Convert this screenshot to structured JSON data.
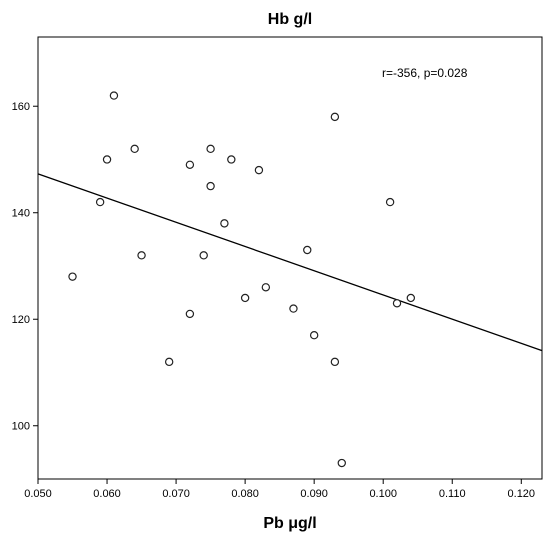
{
  "chart_data": {
    "type": "scatter",
    "title": "Hb g/l",
    "xlabel": "Pb μg/l",
    "ylabel": "",
    "xlim": [
      0.05,
      0.123
    ],
    "ylim": [
      90,
      173
    ],
    "x_ticks": [
      0.05,
      0.06,
      0.07,
      0.08,
      0.09,
      0.1,
      0.11,
      0.12
    ],
    "x_tick_labels": [
      "0.050",
      "0.060",
      "0.070",
      "0.080",
      "0.090",
      "0.100",
      "0.110",
      "0.120"
    ],
    "y_ticks": [
      100,
      120,
      140,
      160
    ],
    "y_tick_labels": [
      "100",
      "120",
      "140",
      "160"
    ],
    "annotation": "r=-356, p=0.028",
    "grid": false,
    "points": [
      {
        "x": 0.055,
        "y": 128
      },
      {
        "x": 0.059,
        "y": 142
      },
      {
        "x": 0.06,
        "y": 150
      },
      {
        "x": 0.061,
        "y": 162
      },
      {
        "x": 0.064,
        "y": 152
      },
      {
        "x": 0.065,
        "y": 132
      },
      {
        "x": 0.069,
        "y": 112
      },
      {
        "x": 0.072,
        "y": 149
      },
      {
        "x": 0.072,
        "y": 121
      },
      {
        "x": 0.074,
        "y": 132
      },
      {
        "x": 0.075,
        "y": 152
      },
      {
        "x": 0.075,
        "y": 145
      },
      {
        "x": 0.077,
        "y": 138
      },
      {
        "x": 0.078,
        "y": 150
      },
      {
        "x": 0.08,
        "y": 124
      },
      {
        "x": 0.082,
        "y": 148
      },
      {
        "x": 0.083,
        "y": 126
      },
      {
        "x": 0.087,
        "y": 122
      },
      {
        "x": 0.089,
        "y": 133
      },
      {
        "x": 0.09,
        "y": 117
      },
      {
        "x": 0.093,
        "y": 158
      },
      {
        "x": 0.093,
        "y": 112
      },
      {
        "x": 0.094,
        "y": 93
      },
      {
        "x": 0.101,
        "y": 142
      },
      {
        "x": 0.102,
        "y": 123
      },
      {
        "x": 0.104,
        "y": 124
      }
    ],
    "fit_line": {
      "x": [
        0.05,
        0.123
      ],
      "y": [
        147.3,
        114.1
      ]
    }
  }
}
